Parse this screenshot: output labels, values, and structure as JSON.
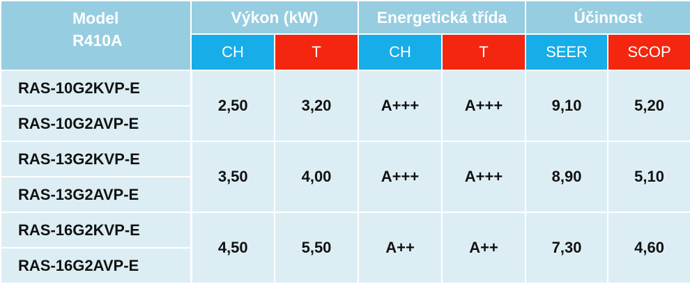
{
  "header": {
    "model_line1": "Model",
    "model_line2": "R410A",
    "groups": [
      "Výkon (kW)",
      "Energetická třída",
      "Účinnost"
    ],
    "sub": [
      "CH",
      "T",
      "CH",
      "T",
      "SEER",
      "SCOP"
    ]
  },
  "colors": {
    "blue": "#17ade8",
    "red": "#f4260f",
    "header_bg": "#97cde0",
    "row_bg": "#dceef4"
  },
  "rows": [
    {
      "models": [
        "RAS-10G2KVP-E",
        "RAS-10G2AVP-E"
      ],
      "values": [
        "2,50",
        "3,20",
        "A+++",
        "A+++",
        "9,10",
        "5,20"
      ]
    },
    {
      "models": [
        "RAS-13G2KVP-E",
        "RAS-13G2AVP-E"
      ],
      "values": [
        "3,50",
        "4,00",
        "A+++",
        "A+++",
        "8,90",
        "5,10"
      ]
    },
    {
      "models": [
        "RAS-16G2KVP-E",
        "RAS-16G2AVP-E"
      ],
      "values": [
        "4,50",
        "5,50",
        "A++",
        "A++",
        "7,30",
        "4,60"
      ]
    }
  ]
}
